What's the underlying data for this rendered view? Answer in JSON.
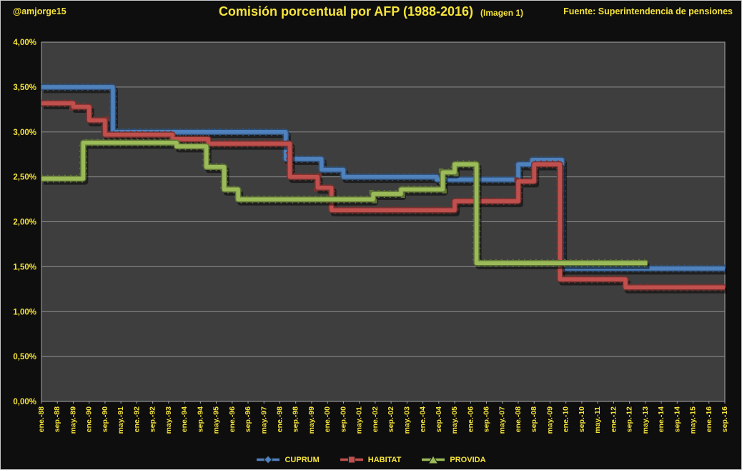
{
  "header": {
    "handle": "@amjorge15",
    "title": "Comisión porcentual por AFP (1988-2016)",
    "subtitle": "(Imagen 1)",
    "source": "Fuente: Superintendencia de pensiones"
  },
  "colors": {
    "background": "#0e0e0e",
    "plot_background": "#3e3e3e",
    "gridline": "#8e8e8e",
    "axis_border": "#a6a6a6",
    "text_yellow": "#f6e43b",
    "cuprum_blue": "#4f81bd",
    "habitat_red": "#c0504d",
    "provida_green": "#9bbb59",
    "shadow": "rgba(0,0,0,0.5)"
  },
  "chart_data": {
    "type": "line",
    "style": "3d-step-line",
    "title": "Comisión porcentual por AFP (1988-2016)",
    "subtitle": "(Imagen 1)",
    "xlabel": "",
    "ylabel": "",
    "units": "percent",
    "grid": true,
    "legend_position": "bottom",
    "ylim": [
      0,
      4
    ],
    "ytick_step": 0.5,
    "ytick_labels": [
      "0,00%",
      "0,50%",
      "1,00%",
      "1,50%",
      "2,00%",
      "2,50%",
      "3,00%",
      "3,50%",
      "4,00%"
    ],
    "x_unit": "months since ene.-88",
    "x_months_total": 344,
    "x_tick_interval_months": 8,
    "x_tick_labels": [
      "ene.-88",
      "sep.-88",
      "may.-89",
      "ene.-90",
      "sep.-90",
      "may.-91",
      "ene.-92",
      "sep.-92",
      "may.-93",
      "ene.-94",
      "sep.-94",
      "may.-95",
      "ene.-96",
      "sep.-96",
      "may.-97",
      "ene.-98",
      "sep.-98",
      "may.-99",
      "ene.-00",
      "sep.-00",
      "may.-01",
      "ene.-02",
      "sep.-02",
      "may.-03",
      "ene.-04",
      "sep.-04",
      "may.-05",
      "ene.-06",
      "sep.-06",
      "may.-07",
      "ene.-08",
      "sep.-08",
      "may.-09",
      "ene.-10",
      "sep.-10",
      "may.-11",
      "ene.-12",
      "sep.-12",
      "may.-13",
      "ene.-14",
      "sep.-14",
      "may.-15",
      "ene.-16",
      "sep.-16"
    ],
    "series": [
      {
        "name": "CUPRUM",
        "color": "#4f81bd",
        "marker": "diamond",
        "points": [
          [
            0,
            3.5
          ],
          [
            36,
            3.0
          ],
          [
            123,
            2.7
          ],
          [
            141,
            2.58
          ],
          [
            152,
            2.5
          ],
          [
            199,
            2.47
          ],
          [
            240,
            2.64
          ],
          [
            247,
            2.69
          ],
          [
            262,
            1.48
          ],
          [
            344,
            1.48
          ]
        ]
      },
      {
        "name": "HABITAT",
        "color": "#c0504d",
        "marker": "square",
        "points": [
          [
            0,
            3.32
          ],
          [
            16,
            3.28
          ],
          [
            24,
            3.13
          ],
          [
            32,
            2.97
          ],
          [
            66,
            2.92
          ],
          [
            84,
            2.87
          ],
          [
            125,
            2.5
          ],
          [
            139,
            2.38
          ],
          [
            146,
            2.13
          ],
          [
            208,
            2.23
          ],
          [
            240,
            2.45
          ],
          [
            248,
            2.64
          ],
          [
            261,
            1.36
          ],
          [
            294,
            1.27
          ],
          [
            344,
            1.27
          ]
        ]
      },
      {
        "name": "PROVIDA",
        "color": "#9bbb59",
        "marker": "triangle",
        "points": [
          [
            0,
            2.48
          ],
          [
            21,
            2.88
          ],
          [
            68,
            2.84
          ],
          [
            83,
            2.61
          ],
          [
            92,
            2.36
          ],
          [
            99,
            2.25
          ],
          [
            167,
            2.31
          ],
          [
            181,
            2.36
          ],
          [
            202,
            2.55
          ],
          [
            208,
            2.64
          ],
          [
            219,
            1.54
          ],
          [
            305,
            1.54
          ]
        ]
      }
    ]
  }
}
